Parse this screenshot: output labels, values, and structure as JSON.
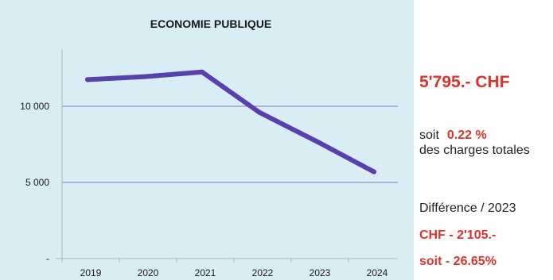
{
  "chart_data": {
    "type": "line",
    "title": "ECONOMIE PUBLIQUE",
    "x": [
      "2019",
      "2020",
      "2021",
      "2022",
      "2023",
      "2024"
    ],
    "series": [
      {
        "values": [
          11750,
          11950,
          12250,
          9600,
          7700,
          5700
        ]
      }
    ],
    "ylim": [
      0,
      15000
    ],
    "yticks": [
      {
        "value": 0,
        "label": "-"
      },
      {
        "value": 5000,
        "label": "5 000"
      },
      {
        "value": 10000,
        "label": "10 000"
      }
    ],
    "grid": true,
    "line_color": "#5a3fb0",
    "grid_color": "#8b74c9"
  },
  "side_panel": {
    "total": "5'795.- CHF",
    "share_prefix": "soit",
    "share_pct": "0.22 %",
    "share_desc": "des charges totales",
    "diff_label": "Différence / 2023",
    "diff_amount": "CHF - 2'105.-",
    "diff_pct": "soit - 26.65%"
  },
  "colors": {
    "accent": "#e0322a",
    "panel_bg": "#d9edf5"
  }
}
